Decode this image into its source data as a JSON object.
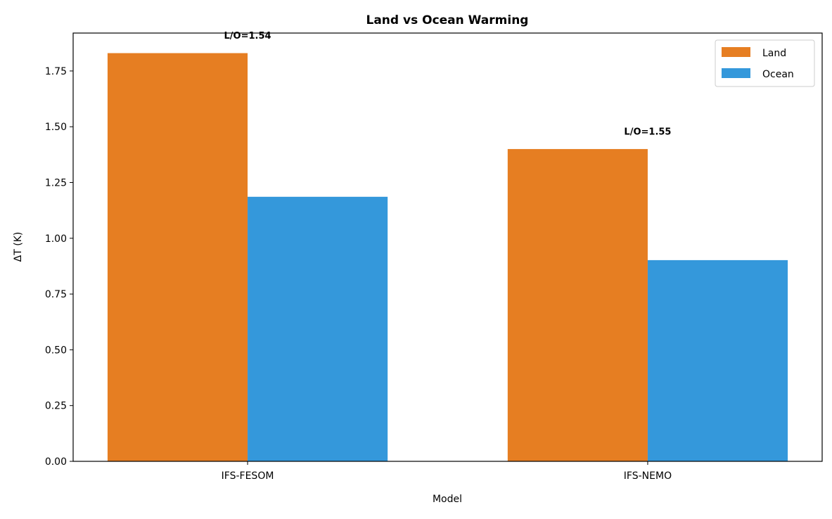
{
  "chart_data": {
    "type": "bar",
    "title": "Land vs Ocean Warming",
    "xlabel": "Model",
    "ylabel": "ΔT (K)",
    "categories": [
      "IFS-FESOM",
      "IFS-NEMO"
    ],
    "series": [
      {
        "name": "Land",
        "color": "#E67E22",
        "values": [
          1.83,
          1.4
        ]
      },
      {
        "name": "Ocean",
        "color": "#3498DB",
        "values": [
          1.186,
          0.902
        ]
      }
    ],
    "annotations": [
      "L/O=1.54",
      "L/O=1.55"
    ],
    "ylim": [
      0,
      1.92
    ],
    "yticks": [
      "0.00",
      "0.25",
      "0.50",
      "0.75",
      "1.00",
      "1.25",
      "1.50",
      "1.75"
    ],
    "grid": false,
    "legend_position": "top-right"
  }
}
